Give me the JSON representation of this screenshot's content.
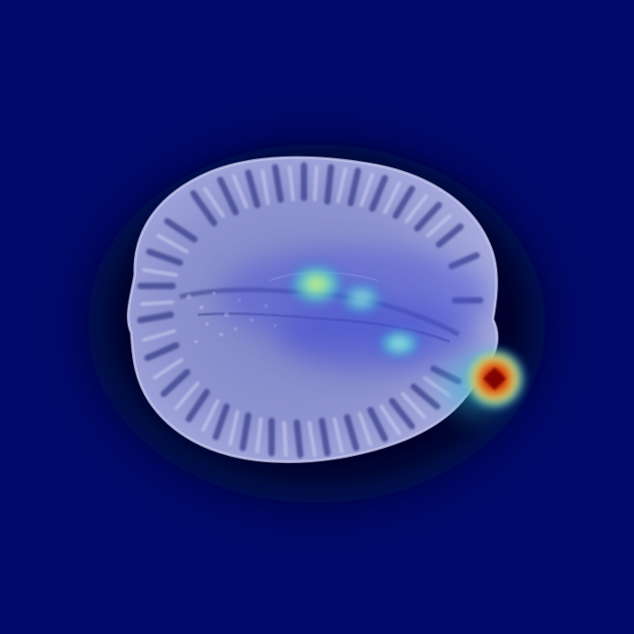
{
  "image": {
    "kind": "brain MRI axial slice with heatmap (saliency) overlay",
    "background_color": "#010a6b",
    "halo_color": "#000a4a",
    "tissue_color": "#9aa0d8",
    "tissue_highlight_color": "#c9ccef",
    "overlay_colors": {
      "low": "#1a28c8",
      "mid": "#49e0d0",
      "warm": "#d8e84a",
      "hot_outer": "#e84a1a",
      "hot_core": "#7a0000"
    }
  }
}
